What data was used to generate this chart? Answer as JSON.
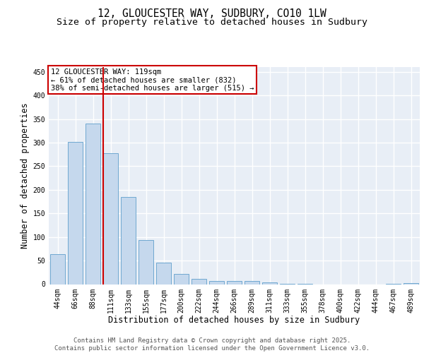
{
  "title_line1": "12, GLOUCESTER WAY, SUDBURY, CO10 1LW",
  "title_line2": "Size of property relative to detached houses in Sudbury",
  "xlabel": "Distribution of detached houses by size in Sudbury",
  "ylabel": "Number of detached properties",
  "categories": [
    "44sqm",
    "66sqm",
    "88sqm",
    "111sqm",
    "133sqm",
    "155sqm",
    "177sqm",
    "200sqm",
    "222sqm",
    "244sqm",
    "266sqm",
    "289sqm",
    "311sqm",
    "333sqm",
    "355sqm",
    "378sqm",
    "400sqm",
    "422sqm",
    "444sqm",
    "467sqm",
    "489sqm"
  ],
  "values": [
    63,
    301,
    340,
    278,
    185,
    93,
    46,
    22,
    11,
    7,
    6,
    6,
    4,
    1,
    1,
    0,
    0,
    0,
    0,
    1,
    2
  ],
  "bar_color": "#c5d8ed",
  "bar_edge_color": "#6fa8d0",
  "vline_index": 3,
  "vline_color": "#cc0000",
  "annotation_text": "12 GLOUCESTER WAY: 119sqm\n← 61% of detached houses are smaller (832)\n38% of semi-detached houses are larger (515) →",
  "annotation_box_color": "#cc0000",
  "annotation_text_color": "#000000",
  "ylim": [
    0,
    460
  ],
  "yticks": [
    0,
    50,
    100,
    150,
    200,
    250,
    300,
    350,
    400,
    450
  ],
  "background_color": "#e8eef6",
  "grid_color": "#ffffff",
  "footer_text": "Contains HM Land Registry data © Crown copyright and database right 2025.\nContains public sector information licensed under the Open Government Licence v3.0.",
  "title_fontsize": 10.5,
  "subtitle_fontsize": 9.5,
  "axis_label_fontsize": 8.5,
  "tick_fontsize": 7,
  "annotation_fontsize": 7.5,
  "footer_fontsize": 6.5
}
